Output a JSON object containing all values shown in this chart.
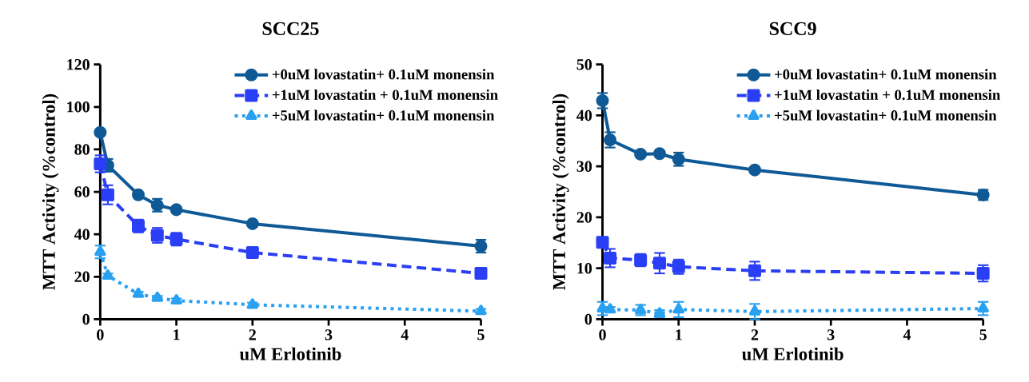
{
  "chart_data": [
    {
      "type": "line",
      "title": "SCC25",
      "xlabel": "uM Erlotinib",
      "ylabel": "MTT Activity (%control)",
      "x": [
        0,
        0.1,
        0.5,
        0.75,
        1,
        2,
        5
      ],
      "xlim": [
        0,
        5
      ],
      "xticks": [
        0,
        1,
        2,
        3,
        4,
        5
      ],
      "ylim": [
        0,
        120
      ],
      "yticks": [
        0,
        20,
        40,
        60,
        80,
        100,
        120
      ],
      "legend": "top right",
      "series": [
        {
          "name": "+0uM lovastatin+ 0.1uM monensin",
          "color": "#0f5a96",
          "marker": "circle",
          "line_style": "solid",
          "values": [
            88,
            72.5,
            58.6,
            53.7,
            51.6,
            45,
            34.4
          ],
          "errors": [
            1,
            3,
            1,
            3,
            1,
            1,
            3
          ]
        },
        {
          "name": "+1uM lovastatin + 0.1uM monensin",
          "color": "#2a3ff5",
          "marker": "square",
          "line_style": "dashed",
          "values": [
            73.2,
            58.6,
            43.9,
            39.5,
            37.7,
            31.4,
            21.6
          ],
          "errors": [
            4,
            4.5,
            3,
            3.5,
            3,
            1,
            1
          ]
        },
        {
          "name": "+5uM lovastatin+ 0.1uM monensin",
          "color": "#2aa0f0",
          "marker": "triangle",
          "line_style": "dotted",
          "values": [
            31.7,
            20.5,
            11.9,
            10,
            8.8,
            6.8,
            3.8
          ],
          "errors": [
            3,
            1,
            1,
            1,
            1,
            1,
            1
          ]
        }
      ]
    },
    {
      "type": "line",
      "title": "SCC9",
      "xlabel": "uM Erlotinib",
      "ylabel": "MTT Activity (%control)",
      "x": [
        0,
        0.1,
        0.5,
        0.75,
        1,
        2,
        5
      ],
      "xlim": [
        0,
        5
      ],
      "xticks": [
        0,
        1,
        2,
        3,
        4,
        5
      ],
      "ylim": [
        0,
        50
      ],
      "yticks": [
        0,
        10,
        20,
        30,
        40,
        50
      ],
      "legend": "top right",
      "series": [
        {
          "name": "+0uM lovastatin+ 0.1uM monensin",
          "color": "#0f5a96",
          "marker": "circle",
          "line_style": "solid",
          "values": [
            42.9,
            35.2,
            32.4,
            32.5,
            31.4,
            29.3,
            24.4
          ],
          "errors": [
            1.5,
            1.5,
            0.5,
            0.5,
            1.3,
            0.5,
            1
          ]
        },
        {
          "name": "+1uM lovastatin + 0.1uM monensin",
          "color": "#2a3ff5",
          "marker": "square",
          "line_style": "dashed",
          "values": [
            15.1,
            12,
            11.6,
            11,
            10.3,
            9.5,
            9
          ],
          "errors": [
            1,
            1.8,
            1.2,
            2,
            1.4,
            1.8,
            1.6
          ]
        },
        {
          "name": "+5uM lovastatin+ 0.1uM monensin",
          "color": "#2aa0f0",
          "marker": "triangle",
          "line_style": "dotted",
          "values": [
            2.1,
            1.9,
            1.8,
            1.1,
            1.9,
            1.5,
            2.1
          ],
          "errors": [
            1.3,
            0.5,
            1,
            0.7,
            1.5,
            1.5,
            1.3
          ]
        }
      ]
    }
  ]
}
